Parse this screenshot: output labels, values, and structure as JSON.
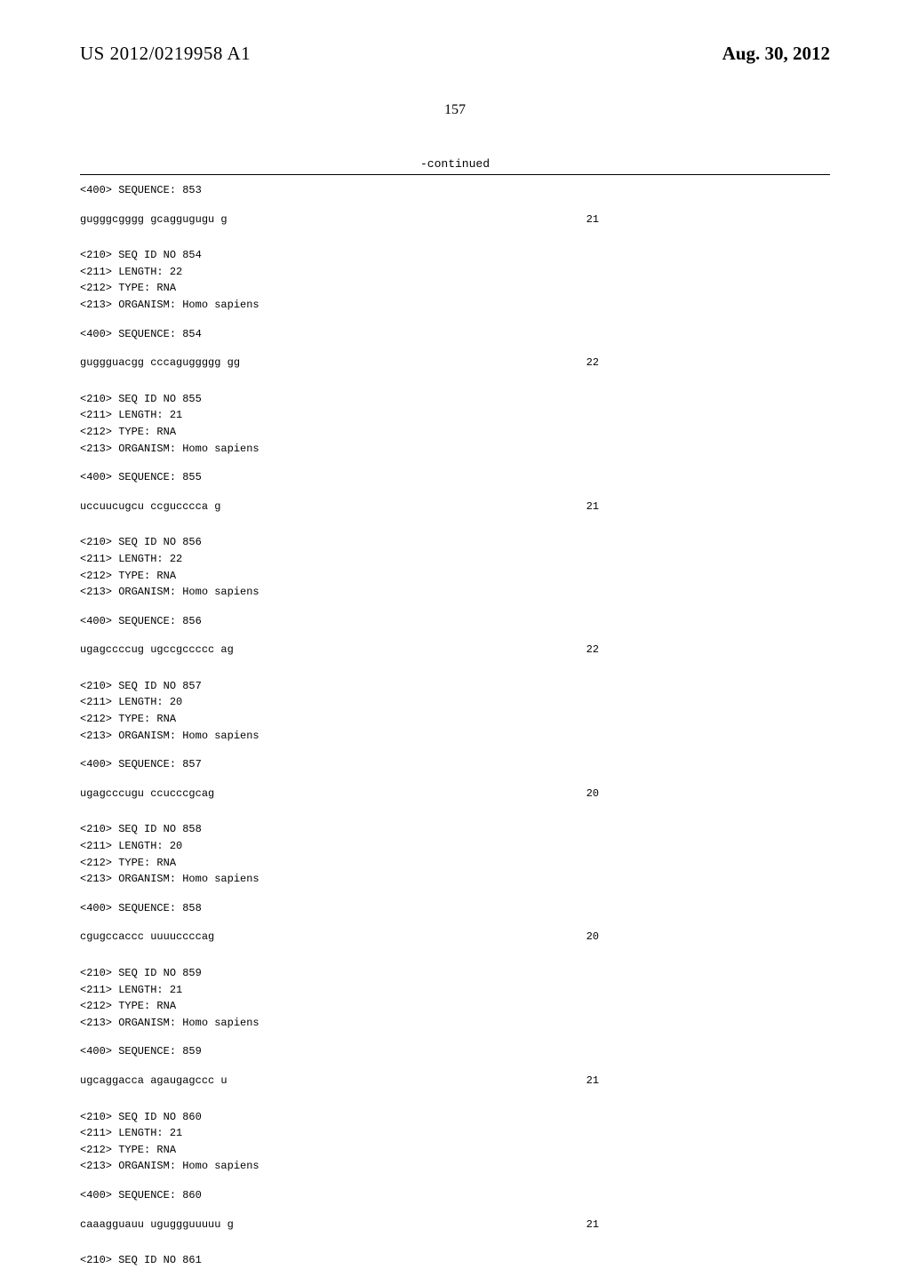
{
  "header": {
    "publication_number": "US 2012/0219958 A1",
    "publication_date": "Aug. 30, 2012"
  },
  "page_number": "157",
  "continued_label": "-continued",
  "first_block": {
    "seq400": "<400> SEQUENCE: 853",
    "sequence": "gugggcgggg gcaggugugu g",
    "length_shown": "21"
  },
  "blocks": [
    {
      "lines": [
        "<210> SEQ ID NO 854",
        "<211> LENGTH: 22",
        "<212> TYPE: RNA",
        "<213> ORGANISM: Homo sapiens"
      ],
      "seq400": "<400> SEQUENCE: 854",
      "sequence": "guggguacgg cccaguggggg gg",
      "length_shown": "22"
    },
    {
      "lines": [
        "<210> SEQ ID NO 855",
        "<211> LENGTH: 21",
        "<212> TYPE: RNA",
        "<213> ORGANISM: Homo sapiens"
      ],
      "seq400": "<400> SEQUENCE: 855",
      "sequence": "uccuucugcu ccgucccca g",
      "length_shown": "21"
    },
    {
      "lines": [
        "<210> SEQ ID NO 856",
        "<211> LENGTH: 22",
        "<212> TYPE: RNA",
        "<213> ORGANISM: Homo sapiens"
      ],
      "seq400": "<400> SEQUENCE: 856",
      "sequence": "ugagccccug ugccgccccc ag",
      "length_shown": "22"
    },
    {
      "lines": [
        "<210> SEQ ID NO 857",
        "<211> LENGTH: 20",
        "<212> TYPE: RNA",
        "<213> ORGANISM: Homo sapiens"
      ],
      "seq400": "<400> SEQUENCE: 857",
      "sequence": "ugagcccugu ccucccgcag",
      "length_shown": "20"
    },
    {
      "lines": [
        "<210> SEQ ID NO 858",
        "<211> LENGTH: 20",
        "<212> TYPE: RNA",
        "<213> ORGANISM: Homo sapiens"
      ],
      "seq400": "<400> SEQUENCE: 858",
      "sequence": "cgugccaccc uuuuccccag",
      "length_shown": "20"
    },
    {
      "lines": [
        "<210> SEQ ID NO 859",
        "<211> LENGTH: 21",
        "<212> TYPE: RNA",
        "<213> ORGANISM: Homo sapiens"
      ],
      "seq400": "<400> SEQUENCE: 859",
      "sequence": "ugcaggacca agaugagccc u",
      "length_shown": "21"
    },
    {
      "lines": [
        "<210> SEQ ID NO 860",
        "<211> LENGTH: 21",
        "<212> TYPE: RNA",
        "<213> ORGANISM: Homo sapiens"
      ],
      "seq400": "<400> SEQUENCE: 860",
      "sequence": "caaagguauu uguggguuuuu g",
      "length_shown": "21"
    }
  ],
  "trailing_line": "<210> SEQ ID NO 861"
}
